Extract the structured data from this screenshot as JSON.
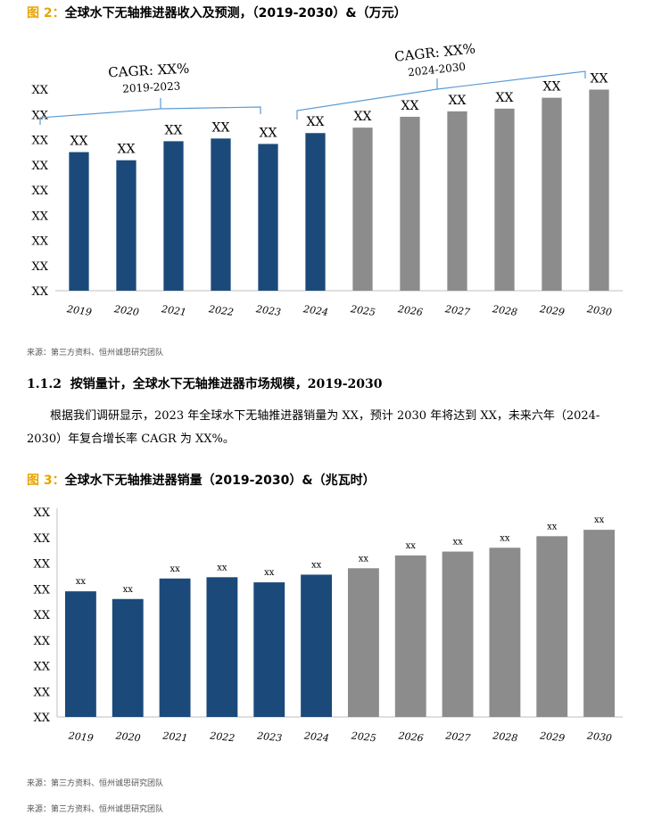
{
  "figure2": {
    "label": "图 2：",
    "title": "全球水下无轴推进器收入及预测，（2019-2030）&（万元）",
    "source": "来源：第三方资料、恒州诚思研究团队"
  },
  "section": {
    "number": "1.1.2",
    "title": "按销量计，全球水下无轴推进器市场规模，2019-2030"
  },
  "paragraph": "根据我们调研显示，2023 年全球水下无轴推进器销量为 XX，预计 2030 年将达到 XX，未来六年（2024-2030）年复合增长率 CAGR 为 XX%。",
  "figure3": {
    "label": "图 3：",
    "title": "全球水下无轴推进器销量（2019-2030）&（兆瓦时）",
    "source": "来源：第三方资料、恒州诚思研究团队"
  },
  "footer_source": "来源：第三方资料、恒州诚思研究团队",
  "colors": {
    "historical": "#1b4a7a",
    "forecast": "#8c8c8c",
    "bracket": "#5b9bd5",
    "label_accent": "#e8a400"
  },
  "chart_data": [
    {
      "type": "bar",
      "title": "全球水下无轴推进器收入及预测，（2019-2030）&（万元）",
      "categories": [
        "2019",
        "2020",
        "2021",
        "2022",
        "2023",
        "2024",
        "2025",
        "2026",
        "2027",
        "2028",
        "2029",
        "2030"
      ],
      "values": [
        51,
        48,
        55,
        56,
        54,
        58,
        60,
        64,
        66,
        67,
        71,
        74
      ],
      "bar_labels": [
        "XX",
        "XX",
        "XX",
        "XX",
        "XX",
        "XX",
        "XX",
        "XX",
        "XX",
        "XX",
        "XX",
        "XX"
      ],
      "y_tick_labels": [
        "XX",
        "XX",
        "XX",
        "XX",
        "XX",
        "XX",
        "XX",
        "XX",
        "XX"
      ],
      "ylim": [
        0,
        84
      ],
      "historical_until": "2024",
      "annotations": [
        {
          "text": "CAGR: XX%",
          "period": "2019-2023"
        },
        {
          "text": "CAGR: XX%",
          "period": "2024-2030"
        }
      ],
      "xlabel": "",
      "ylabel": ""
    },
    {
      "type": "bar",
      "title": "全球水下无轴推进器销量（2019-2030）&（兆瓦时）",
      "categories": [
        "2019",
        "2020",
        "2021",
        "2022",
        "2023",
        "2024",
        "2025",
        "2026",
        "2027",
        "2028",
        "2029",
        "2030"
      ],
      "values": [
        49,
        46,
        54,
        54.5,
        52.5,
        55.5,
        58,
        63,
        64.5,
        66,
        70.5,
        73
      ],
      "bar_labels": [
        "xx",
        "xx",
        "xx",
        "xx",
        "xx",
        "xx",
        "xx",
        "xx",
        "xx",
        "xx",
        "xx",
        "xx"
      ],
      "y_tick_labels": [
        "XX",
        "XX",
        "XX",
        "XX",
        "XX",
        "XX",
        "XX",
        "XX",
        "XX"
      ],
      "ylim": [
        0,
        80
      ],
      "historical_until": "2024",
      "xlabel": "",
      "ylabel": ""
    }
  ]
}
